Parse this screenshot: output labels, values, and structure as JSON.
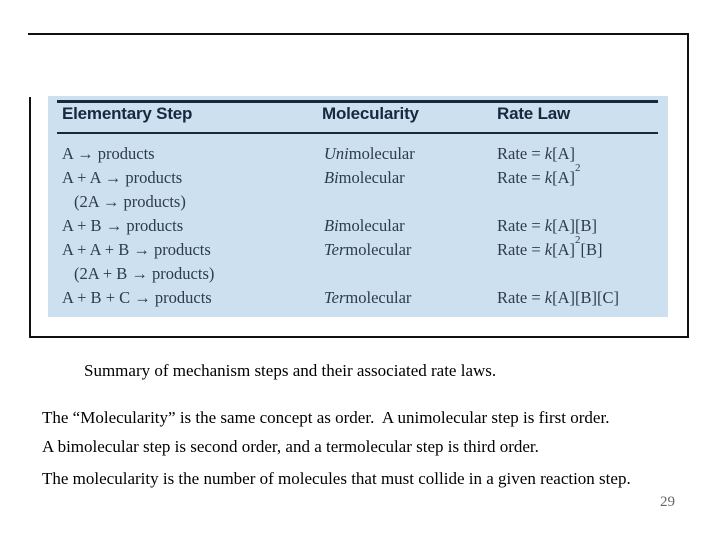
{
  "slide": {
    "caption": "Summary of mechanism steps and their associated rate laws.",
    "paragraph1": "The “Molecularity” is the same concept as order.  A unimolecular step is first order.\nA bimolecular step is second order, and a termolecular step is third order.",
    "paragraph2": "The molecularity is the number of molecules that must collide in a given reaction step.",
    "page_number": "29"
  },
  "table": {
    "headers": [
      "Elementary Step",
      "Molecularity",
      "Rate Law"
    ],
    "rows": [
      {
        "step": "A → products",
        "indent": false,
        "molecularity": "_Uni_molecular",
        "rate": "Rate = _k_[A]"
      },
      {
        "step": "A + A → products",
        "indent": false,
        "molecularity": "_Bi_molecular",
        "rate": "Rate = _k_[A]^2"
      },
      {
        "step": "(2A → products)",
        "indent": true,
        "molecularity": "",
        "rate": ""
      },
      {
        "step": "A + B → products",
        "indent": false,
        "molecularity": "_Bi_molecular",
        "rate": "Rate = _k_[A][B]"
      },
      {
        "step": "A + A + B → products",
        "indent": false,
        "molecularity": "_Ter_molecular",
        "rate": "Rate = _k_[A]^2[B]"
      },
      {
        "step": "(2A + B → products)",
        "indent": true,
        "molecularity": "",
        "rate": ""
      },
      {
        "step": "A + B + C → products",
        "indent": false,
        "molecularity": "_Ter_molecular",
        "rate": "Rate = _k_[A][B][C]"
      }
    ],
    "colors": {
      "panel_bg": "#cce0f0",
      "header_text": "#17293e",
      "body_text": "#2e3b49",
      "rule": "#17293e",
      "frame": "#111111"
    }
  }
}
